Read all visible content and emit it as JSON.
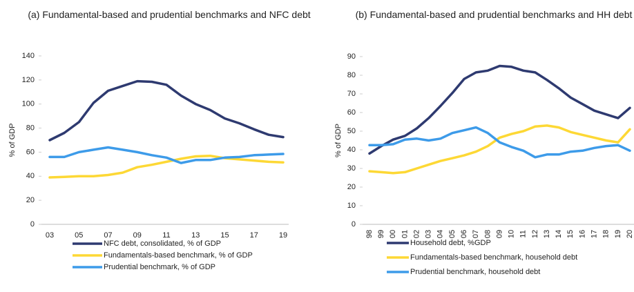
{
  "chart_data": [
    {
      "type": "line",
      "title": "(a) Fundamental-based and prudential benchmarks and NFC debt",
      "y_label": "% of GDP",
      "categories": [
        "03",
        null,
        "05",
        null,
        "07",
        null,
        "09",
        null,
        "11",
        null,
        "13",
        null,
        "15",
        null,
        "17",
        null,
        "19"
      ],
      "ylim": [
        0,
        140
      ],
      "yticks": [
        0,
        20,
        40,
        60,
        80,
        100,
        120,
        140
      ],
      "grid": false,
      "series": [
        {
          "name": "NFC debt, consolidated,  % of GDP",
          "color": "#2e3a70",
          "values": [
            70,
            76,
            85,
            101,
            111,
            115,
            119,
            118.5,
            116,
            107,
            100,
            95,
            88,
            84,
            79,
            74.5,
            72.5
          ]
        },
        {
          "name": "Fundamentals-based benchmark, % of GDP",
          "color": "#fdd835",
          "values": [
            39,
            39.5,
            40,
            40,
            41,
            43,
            47.5,
            49.5,
            52,
            54.5,
            56.5,
            57,
            55,
            54,
            53,
            52,
            51.5
          ]
        },
        {
          "name": "Prudential benchmark, % of GDP",
          "color": "#3d9be9",
          "values": [
            56,
            56,
            60,
            62,
            64,
            62,
            60,
            57.5,
            55.5,
            51,
            53.5,
            53.5,
            55.5,
            56,
            57.5,
            58,
            58.5
          ]
        }
      ]
    },
    {
      "type": "line",
      "title": "(b) Fundamental-based and prudential benchmarks and HH debt",
      "y_label": "% of GDP",
      "categories": [
        "98",
        "99",
        "00",
        "01",
        "02",
        "03",
        "04",
        "05",
        "06",
        "07",
        "08",
        "09",
        "10",
        "11",
        "12",
        "13",
        "14",
        "15",
        "16",
        "17",
        "18",
        "19",
        "20"
      ],
      "ylim": [
        0,
        90
      ],
      "yticks": [
        0,
        10,
        20,
        30,
        40,
        50,
        60,
        70,
        80,
        90
      ],
      "grid": false,
      "series": [
        {
          "name": "Household debt, %GDP",
          "color": "#2e3a70",
          "values": [
            38,
            42,
            45.5,
            47.5,
            51.5,
            57,
            63.5,
            70.5,
            78,
            81.5,
            82.5,
            85,
            84.5,
            82.5,
            81.5,
            77.5,
            73,
            68,
            64.5,
            61,
            59,
            57,
            62.5
          ]
        },
        {
          "name": "Fundamentals-based benchmark, household debt",
          "color": "#fdd835",
          "values": [
            28.5,
            28,
            27.5,
            28,
            30,
            32,
            34,
            35.5,
            37,
            39,
            42,
            46.5,
            48.5,
            50,
            52.5,
            53,
            52,
            49.5,
            48,
            46.5,
            45,
            44,
            51
          ]
        },
        {
          "name": "Prudential benchmark, household debt",
          "color": "#3d9be9",
          "values": [
            42.5,
            42.5,
            43,
            45.5,
            46,
            45,
            46,
            49,
            50.5,
            52,
            49,
            44,
            41.5,
            39.5,
            36,
            37.5,
            37.5,
            39,
            39.5,
            41,
            42,
            42.5,
            39.5
          ]
        }
      ]
    }
  ]
}
